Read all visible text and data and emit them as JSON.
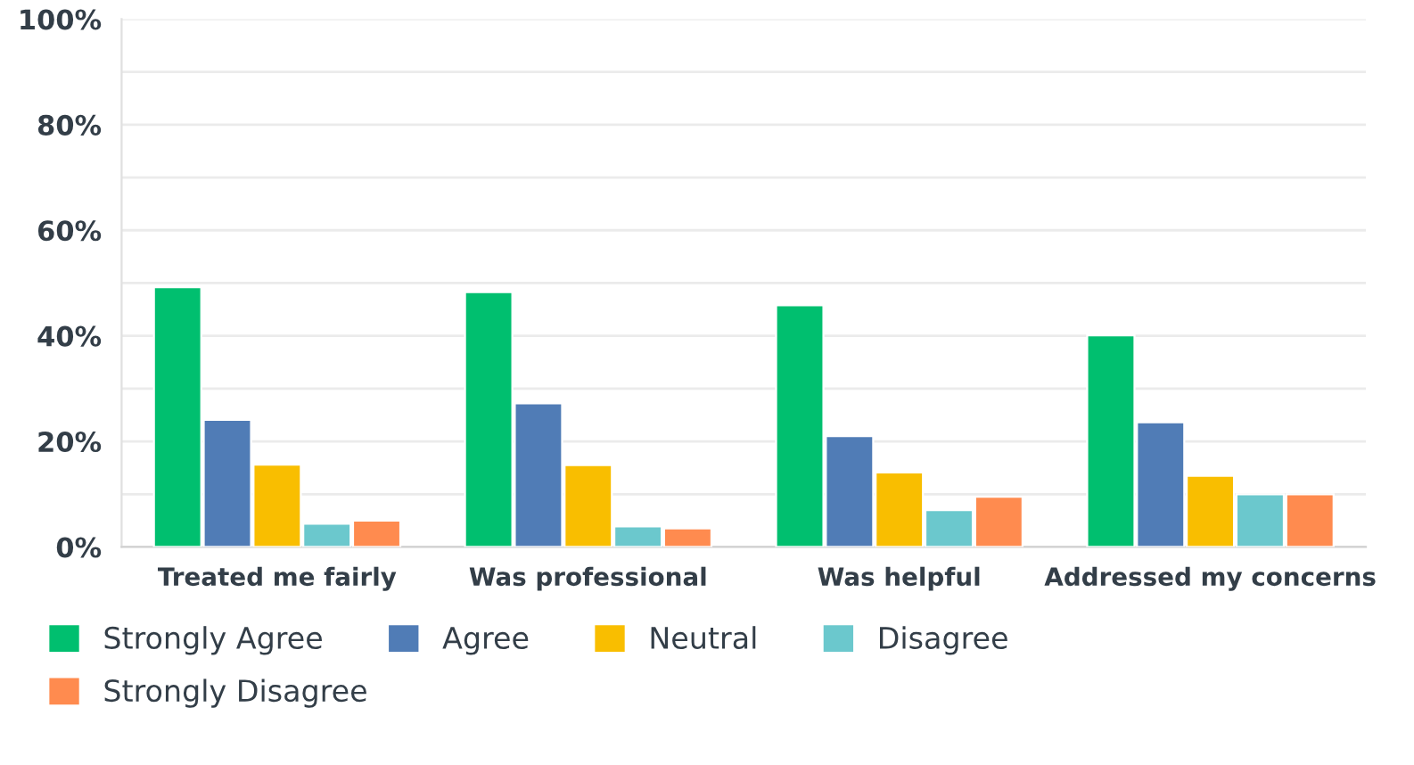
{
  "chart_data": {
    "type": "bar",
    "categories": [
      "Treated me fairly",
      "Was professional",
      "Was helpful",
      "Addressed my concerns"
    ],
    "series": [
      {
        "name": "Strongly Agree",
        "color": "#00bf6f",
        "values": [
          49.2,
          48.3,
          45.8,
          40.1
        ]
      },
      {
        "name": "Agree",
        "color": "#507cb6",
        "values": [
          24.1,
          27.2,
          21.0,
          23.6
        ]
      },
      {
        "name": "Neutral",
        "color": "#f9be00",
        "values": [
          15.6,
          15.5,
          14.1,
          13.5
        ]
      },
      {
        "name": "Disagree",
        "color": "#6bc8cd",
        "values": [
          4.4,
          3.9,
          7.0,
          10.0
        ]
      },
      {
        "name": "Strongly Disagree",
        "color": "#ff8b4f",
        "values": [
          5.0,
          3.5,
          9.5,
          10.0
        ]
      }
    ],
    "ylim": [
      0,
      100
    ],
    "yticks": [
      {
        "value": 0,
        "label": "0%"
      },
      {
        "value": 10,
        "label": null
      },
      {
        "value": 20,
        "label": "20%"
      },
      {
        "value": 30,
        "label": null
      },
      {
        "value": 40,
        "label": "40%"
      },
      {
        "value": 50,
        "label": null
      },
      {
        "value": 60,
        "label": "60%"
      },
      {
        "value": 70,
        "label": null
      },
      {
        "value": 80,
        "label": "80%"
      },
      {
        "value": 90,
        "label": null
      },
      {
        "value": 100,
        "label": "100%"
      }
    ],
    "grid": "y",
    "legend": "bottom left"
  }
}
